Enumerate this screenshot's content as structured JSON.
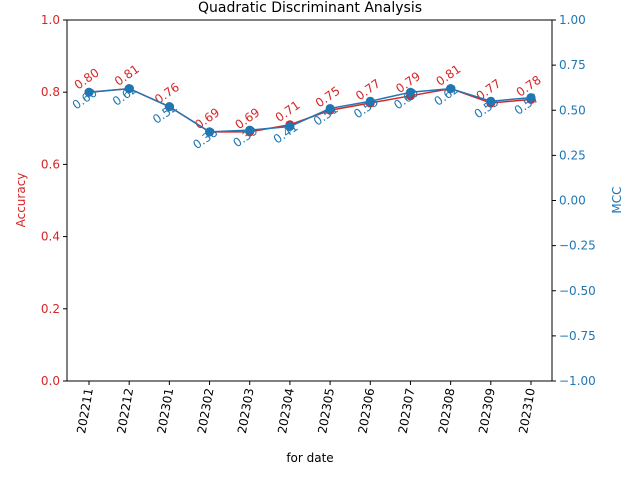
{
  "chart_data": {
    "type": "line",
    "title": "Quadratic Discriminant Analysis",
    "xlabel": "for date",
    "categories": [
      "202211",
      "202212",
      "202301",
      "202302",
      "202303",
      "202304",
      "202305",
      "202306",
      "202307",
      "202308",
      "202309",
      "202310"
    ],
    "left_axis": {
      "label": "Accuracy",
      "ylim": [
        0,
        1
      ],
      "ticks": [
        "0.0",
        "0.2",
        "0.4",
        "0.6",
        "0.8",
        "1.0"
      ],
      "color": "#d62728"
    },
    "right_axis": {
      "label": "MCC",
      "ylim": [
        -1,
        1
      ],
      "ticks": [
        "−1.00",
        "−0.75",
        "−0.50",
        "−0.25",
        "0.00",
        "0.25",
        "0.50",
        "0.75",
        "1.00"
      ],
      "color": "#1f77b4"
    },
    "series": [
      {
        "axis": "left",
        "color": "#d62728",
        "values": [
          0.8,
          0.81,
          0.76,
          0.69,
          0.69,
          0.71,
          0.75,
          0.77,
          0.79,
          0.81,
          0.77,
          0.78
        ],
        "labels": [
          "0.80",
          "0.81",
          "0.76",
          "0.69",
          "0.69",
          "0.71",
          "0.75",
          "0.77",
          "0.79",
          "0.81",
          "0.77",
          "0.78"
        ]
      },
      {
        "axis": "right",
        "color": "#1f77b4",
        "values": [
          0.6,
          0.62,
          0.52,
          0.38,
          0.39,
          0.41,
          0.51,
          0.55,
          0.6,
          0.62,
          0.55,
          0.57
        ],
        "labels": [
          "0.60",
          "0.62",
          "0.52",
          "0.38",
          "0.39",
          "0.41",
          "0.51",
          "0.55",
          "0.60",
          "0.62",
          "0.55",
          "0.57"
        ]
      }
    ]
  }
}
